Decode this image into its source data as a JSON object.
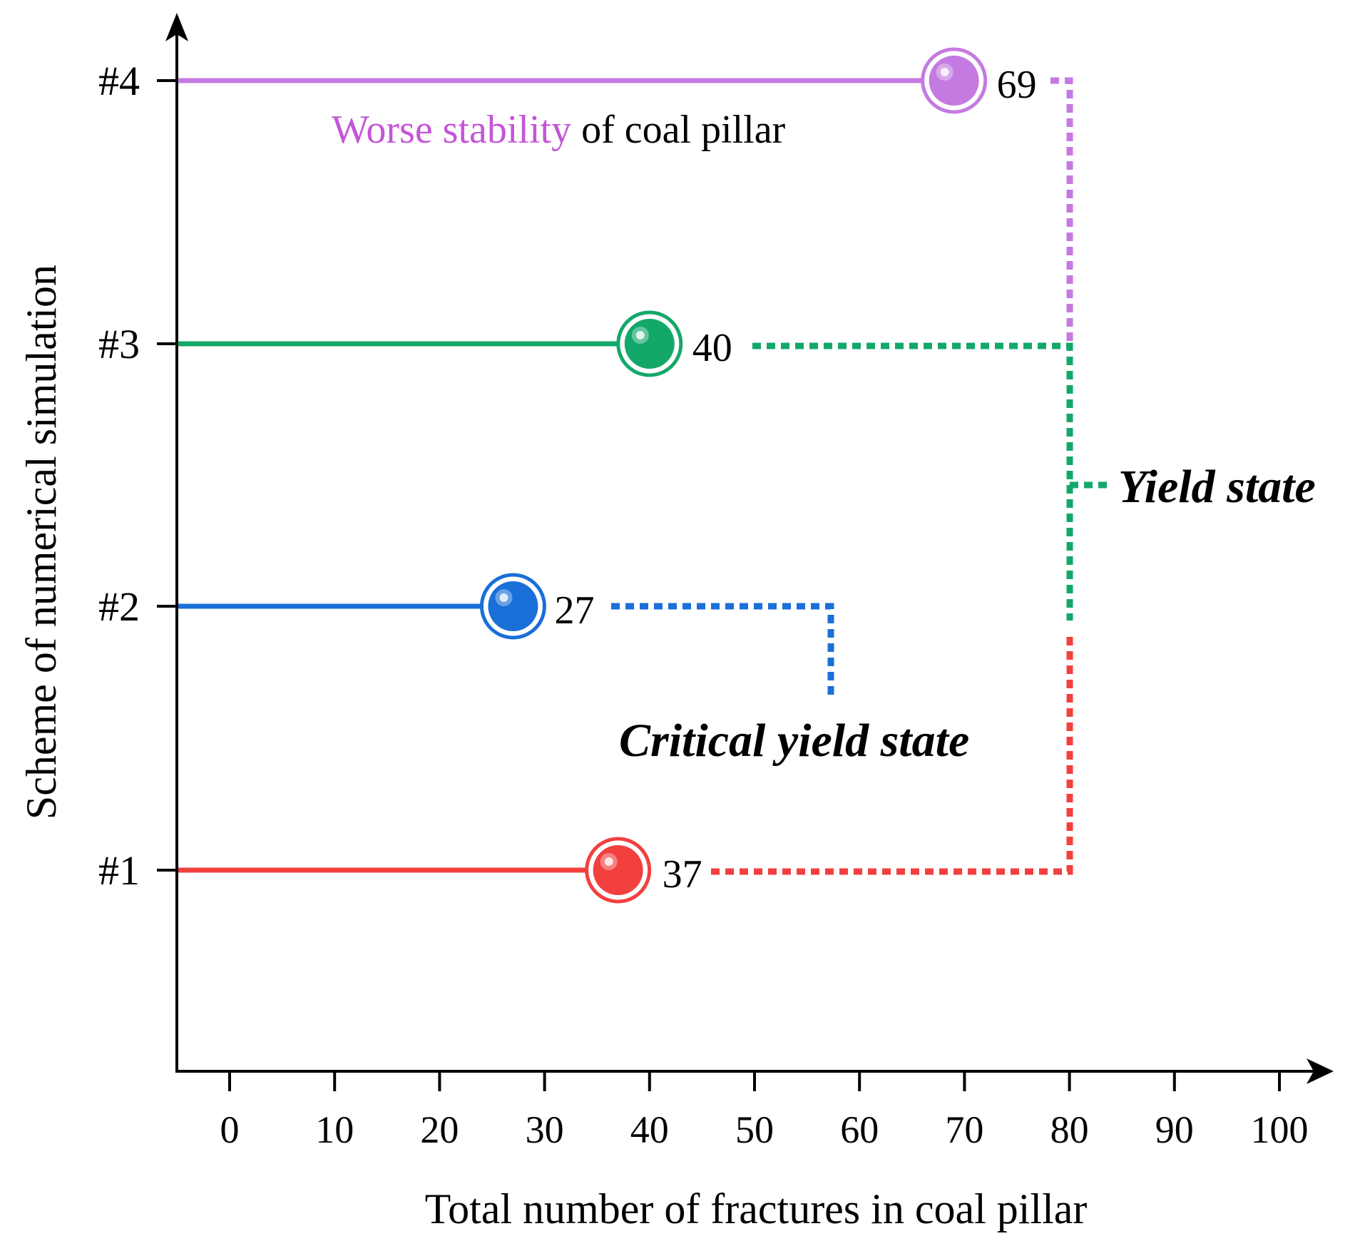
{
  "chart_data": {
    "type": "scatter",
    "xlabel": "Total number of fractures in coal pillar",
    "ylabel": "Scheme of numerical simulation",
    "xlim": [
      -5,
      105
    ],
    "x_ticks": [
      0,
      10,
      20,
      30,
      40,
      50,
      60,
      70,
      80,
      90,
      100
    ],
    "x_tick_labels": [
      "0",
      "10",
      "20",
      "30",
      "40",
      "50",
      "60",
      "70",
      "80",
      "90",
      "100"
    ],
    "categories": [
      "#1",
      "#2",
      "#3",
      "#4"
    ],
    "values": [
      37,
      27,
      40,
      69
    ],
    "value_labels": [
      "37",
      "27",
      "40",
      "69"
    ],
    "colors": [
      "#f2403f",
      "#1a6fd8",
      "#13a86a",
      "#c47ae0"
    ],
    "annotations": {
      "critical": "Critical yield state",
      "yield": "Yield state",
      "stability_highlight": "Worse stability",
      "stability_rest": " of coal pillar"
    },
    "grid": false,
    "legend": "none"
  }
}
